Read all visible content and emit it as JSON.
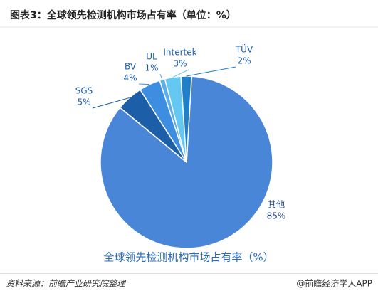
{
  "chart_data": {
    "type": "pie",
    "title": "图表3：全球领先检测机构市场占有率（单位：%）",
    "caption": "全球领先检测机构市场占有率（%）",
    "categories": [
      "其他",
      "SGS",
      "BV",
      "UL",
      "Intertek",
      "TÜV"
    ],
    "values": [
      85,
      5,
      4,
      1,
      3,
      2
    ],
    "value_labels": [
      "85%",
      "5%",
      "4%",
      "1%",
      "3%",
      "2%"
    ],
    "colors": [
      "#4a86d8",
      "#1c5ea8",
      "#3d8ee0",
      "#5aaeea",
      "#64c8f2",
      "#1f7fc8"
    ],
    "source": "资料来源：前瞻产业研究院整理",
    "brand": "@前瞻经济学人APP"
  }
}
